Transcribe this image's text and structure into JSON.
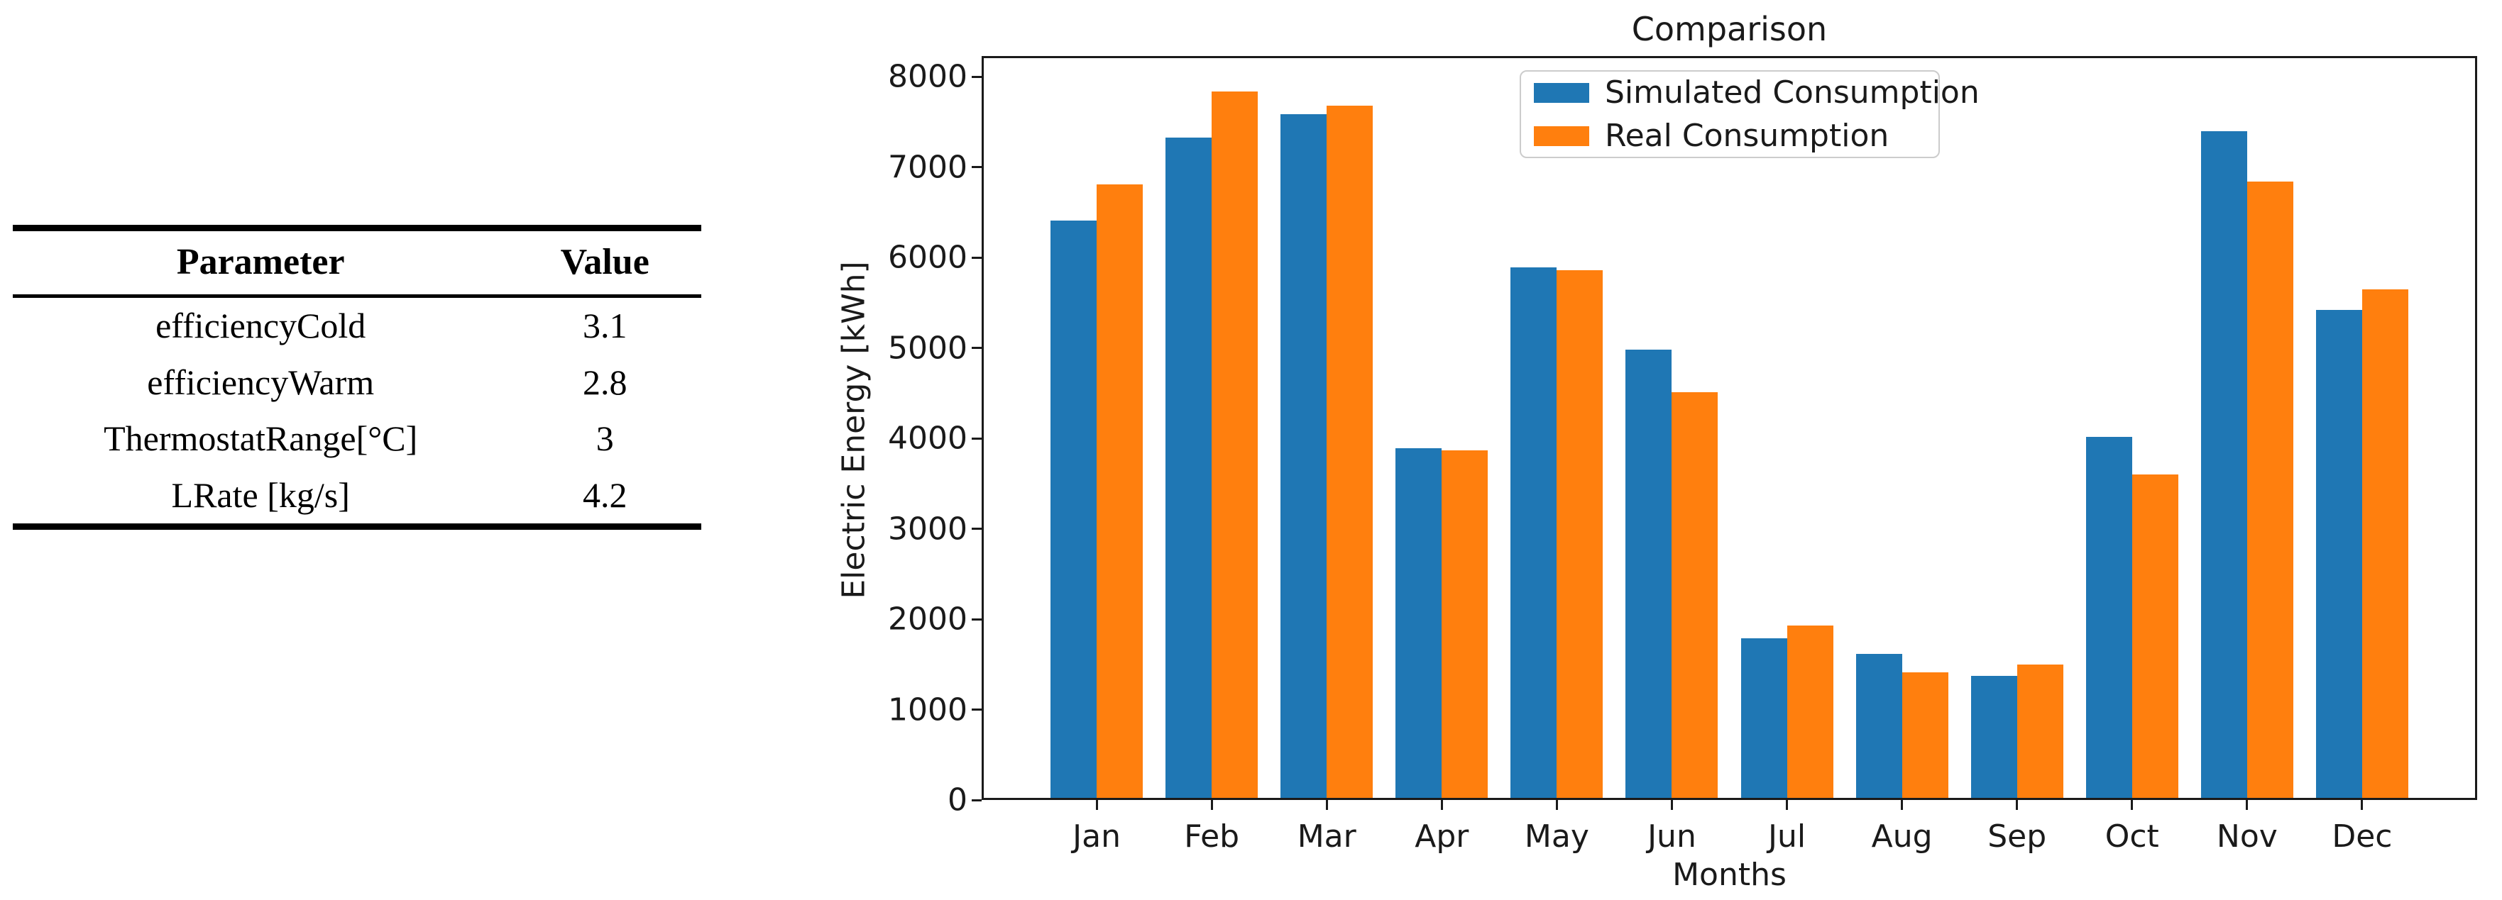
{
  "table": {
    "headers": [
      "Parameter",
      "Value"
    ],
    "rows": [
      {
        "parameter": "efficiencyCold",
        "value": "3.1"
      },
      {
        "parameter": "efficiencyWarm",
        "value": "2.8"
      },
      {
        "parameter": "ThermostatRange[°C]",
        "value": "3"
      },
      {
        "parameter": "LRate [kg/s]",
        "value": "4.2"
      }
    ]
  },
  "chart_data": {
    "type": "bar",
    "title": "Comparison",
    "xlabel": "Months",
    "ylabel": "Electric Energy [kWh]",
    "categories": [
      "Jan",
      "Feb",
      "Mar",
      "Apr",
      "May",
      "Jun",
      "Jul",
      "Aug",
      "Sep",
      "Oct",
      "Nov",
      "Dec"
    ],
    "series": [
      {
        "name": "Simulated Consumption",
        "color": "#1f77b4",
        "values": [
          6410,
          7330,
          7590,
          3890,
          5890,
          4980,
          1790,
          1620,
          1370,
          4020,
          7400,
          5420
        ]
      },
      {
        "name": "Real Consumption",
        "color": "#ff7f0e",
        "values": [
          6810,
          7840,
          7680,
          3870,
          5860,
          4510,
          1930,
          1410,
          1500,
          3600,
          6840,
          5650
        ]
      }
    ],
    "ylim": [
      0,
      8230
    ],
    "yticks": [
      0,
      1000,
      2000,
      3000,
      4000,
      5000,
      6000,
      7000,
      8000
    ],
    "grid": false,
    "legend_position": "upper left-of-center"
  }
}
